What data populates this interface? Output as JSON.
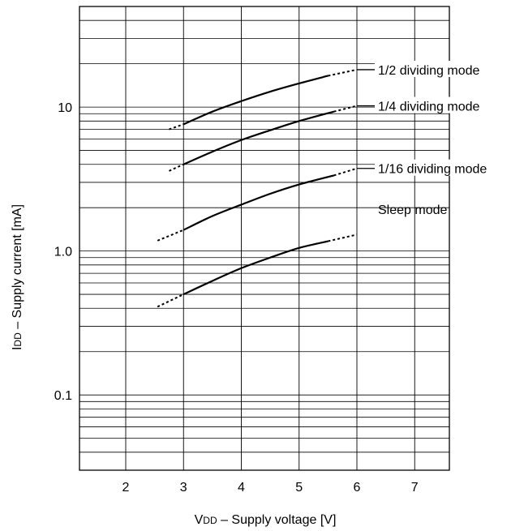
{
  "chart_data": {
    "type": "line",
    "title": "",
    "xlabel": "VDD – Supply voltage  [V]",
    "ylabel": "IDD – Supply current  [mA]",
    "xlabel_parts": {
      "main": "V",
      "sub": "DD",
      "rest": " – Supply voltage  [V]"
    },
    "ylabel_parts": {
      "main": "I",
      "sub": "DD",
      "rest": " – Supply current  [mA]"
    },
    "x_scale": "linear",
    "y_scale": "log",
    "xlim": [
      1.2,
      7.6
    ],
    "ylim": [
      0.03,
      50
    ],
    "x_ticks": [
      2,
      3,
      4,
      5,
      6,
      7
    ],
    "x_tick_labels": [
      "2",
      "3",
      "4",
      "5",
      "6",
      "7"
    ],
    "y_ticks": [
      0.1,
      1,
      10
    ],
    "y_tick_labels": [
      "0.1",
      "1.0",
      "10"
    ],
    "grid": true,
    "series": [
      {
        "name": "1/2 dividing mode",
        "dashed_start": [
          [
            2.75,
            7.0
          ],
          [
            3.0,
            7.6
          ]
        ],
        "solid": [
          [
            3.0,
            7.6
          ],
          [
            3.5,
            9.3
          ],
          [
            4.0,
            11.0
          ],
          [
            4.5,
            12.8
          ],
          [
            5.0,
            14.6
          ],
          [
            5.5,
            16.5
          ]
        ],
        "dashed_end": [
          [
            5.5,
            16.5
          ],
          [
            6.0,
            18.2
          ]
        ]
      },
      {
        "name": "1/4 dividing mode",
        "dashed_start": [
          [
            2.75,
            3.6
          ],
          [
            3.0,
            4.0
          ]
        ],
        "solid": [
          [
            3.0,
            4.0
          ],
          [
            3.5,
            4.9
          ],
          [
            4.0,
            5.9
          ],
          [
            4.5,
            6.9
          ],
          [
            5.0,
            8.0
          ],
          [
            5.6,
            9.3
          ]
        ],
        "dashed_end": [
          [
            5.6,
            9.3
          ],
          [
            6.0,
            10.2
          ]
        ]
      },
      {
        "name": "1/16 dividing mode",
        "dashed_start": [
          [
            2.55,
            1.18
          ],
          [
            3.0,
            1.4
          ]
        ],
        "solid": [
          [
            3.0,
            1.4
          ],
          [
            3.5,
            1.75
          ],
          [
            4.0,
            2.1
          ],
          [
            4.5,
            2.5
          ],
          [
            5.0,
            2.9
          ],
          [
            5.6,
            3.35
          ]
        ],
        "dashed_end": [
          [
            5.6,
            3.35
          ],
          [
            6.0,
            3.75
          ]
        ]
      },
      {
        "name": "Sleep mode",
        "dashed_start": [
          [
            2.55,
            0.41
          ],
          [
            3.0,
            0.5
          ]
        ],
        "solid": [
          [
            3.0,
            0.5
          ],
          [
            3.5,
            0.62
          ],
          [
            4.0,
            0.76
          ],
          [
            4.5,
            0.9
          ],
          [
            5.0,
            1.05
          ],
          [
            5.5,
            1.17
          ]
        ],
        "dashed_end": [
          [
            5.5,
            1.17
          ],
          [
            6.0,
            1.3
          ]
        ]
      }
    ],
    "annotations": [
      {
        "text": "1/2 dividing mode",
        "series": 0,
        "x": 6.0,
        "y": 18.2,
        "label_y": 18.2
      },
      {
        "text": "1/4 dividing mode",
        "series": 1,
        "x": 6.0,
        "y": 10.2,
        "label_y": 10.2
      },
      {
        "text": "1/16 dividing mode",
        "series": 2,
        "x": 6.0,
        "y": 3.75,
        "label_y": 3.75
      },
      {
        "text": "Sleep mode",
        "series": 3,
        "x": 6.0,
        "y": 1.3,
        "label_y": 1.95
      }
    ]
  }
}
